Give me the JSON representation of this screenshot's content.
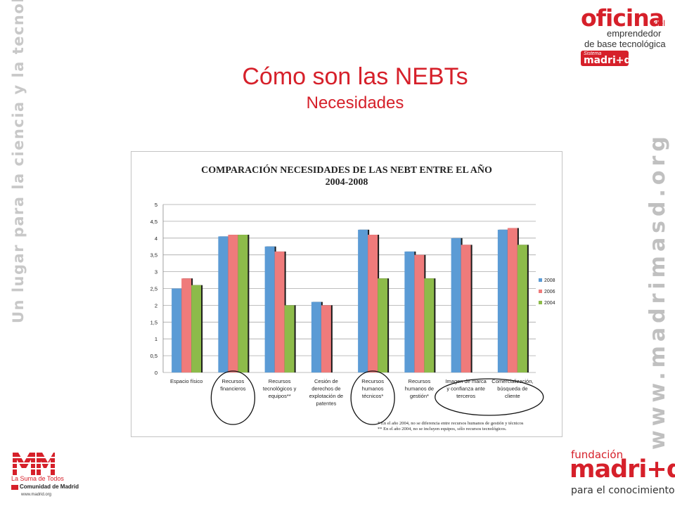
{
  "slide": {
    "title": "Cómo son las NEBTs",
    "subtitle": "Necesidades",
    "side_left_text": "Un lugar para la ciencia y la tecnología",
    "side_right_text": "www.madrimasd.org"
  },
  "logos": {
    "oficina": {
      "word": "oficina",
      "del": "del",
      "line1": "emprendedor",
      "line2": "de base tecnológica",
      "badge_small": "Sistema",
      "badge": "madri+d"
    },
    "comunidad": {
      "suma": "La Suma de Todos",
      "comunidad": "Comunidad de Madrid",
      "web": "www.madrid.org"
    },
    "fundacion": {
      "fundacion": "fundación",
      "madrid": "madri+d",
      "para": "para el conocimiento"
    }
  },
  "colors": {
    "brand_red": "#d6202a",
    "s2008": "#5b9bd5",
    "s2006": "#ef7b7b",
    "s2004": "#8dbb4a"
  },
  "chart_data": {
    "type": "bar",
    "title_line1": "COMPARACIÓN NECESIDADES DE LAS NEBT ENTRE EL AÑO",
    "title_line2": "2004-2008",
    "categories": [
      [
        "Espacio físico"
      ],
      [
        "Recursos",
        "financieros"
      ],
      [
        "Recursos",
        "tecnológicos y",
        "equipos**"
      ],
      [
        "Cesión de",
        "derechos de",
        "explotación de",
        "patentes"
      ],
      [
        "Recursos",
        "humanos",
        "técnicos*"
      ],
      [
        "Recursos",
        "humanos de",
        "gestión*"
      ],
      [
        "Imagen de marca",
        "y confianza ante",
        "terceros"
      ],
      [
        "Comercialización,",
        "búsqueda de",
        "cliente"
      ]
    ],
    "series": [
      {
        "name": "2008",
        "color": "#5b9bd5",
        "values": [
          2.5,
          4.05,
          3.75,
          2.1,
          4.25,
          3.6,
          4.0,
          4.25
        ]
      },
      {
        "name": "2006",
        "color": "#ef7b7b",
        "values": [
          2.8,
          4.1,
          3.6,
          2.0,
          4.1,
          3.5,
          3.8,
          4.3
        ]
      },
      {
        "name": "2004",
        "color": "#8dbb4a",
        "values": [
          2.6,
          4.1,
          2.0,
          null,
          2.8,
          2.8,
          null,
          3.8
        ]
      }
    ],
    "ylim": [
      0,
      5
    ],
    "yticks": [
      "0",
      "0,5",
      "1",
      "1,5",
      "2",
      "2,5",
      "3",
      "3,5",
      "4",
      "4,5",
      "5"
    ],
    "grid": true,
    "legend_position": "right",
    "footnotes": [
      "* En el año 2004, no se diferencia entre recursos humanos de gestión y técnicos",
      "** En el año 2004, no se incluyen equipos, sólo recursos tecnológicos."
    ],
    "circled_categories": [
      1,
      4,
      6,
      7
    ]
  }
}
